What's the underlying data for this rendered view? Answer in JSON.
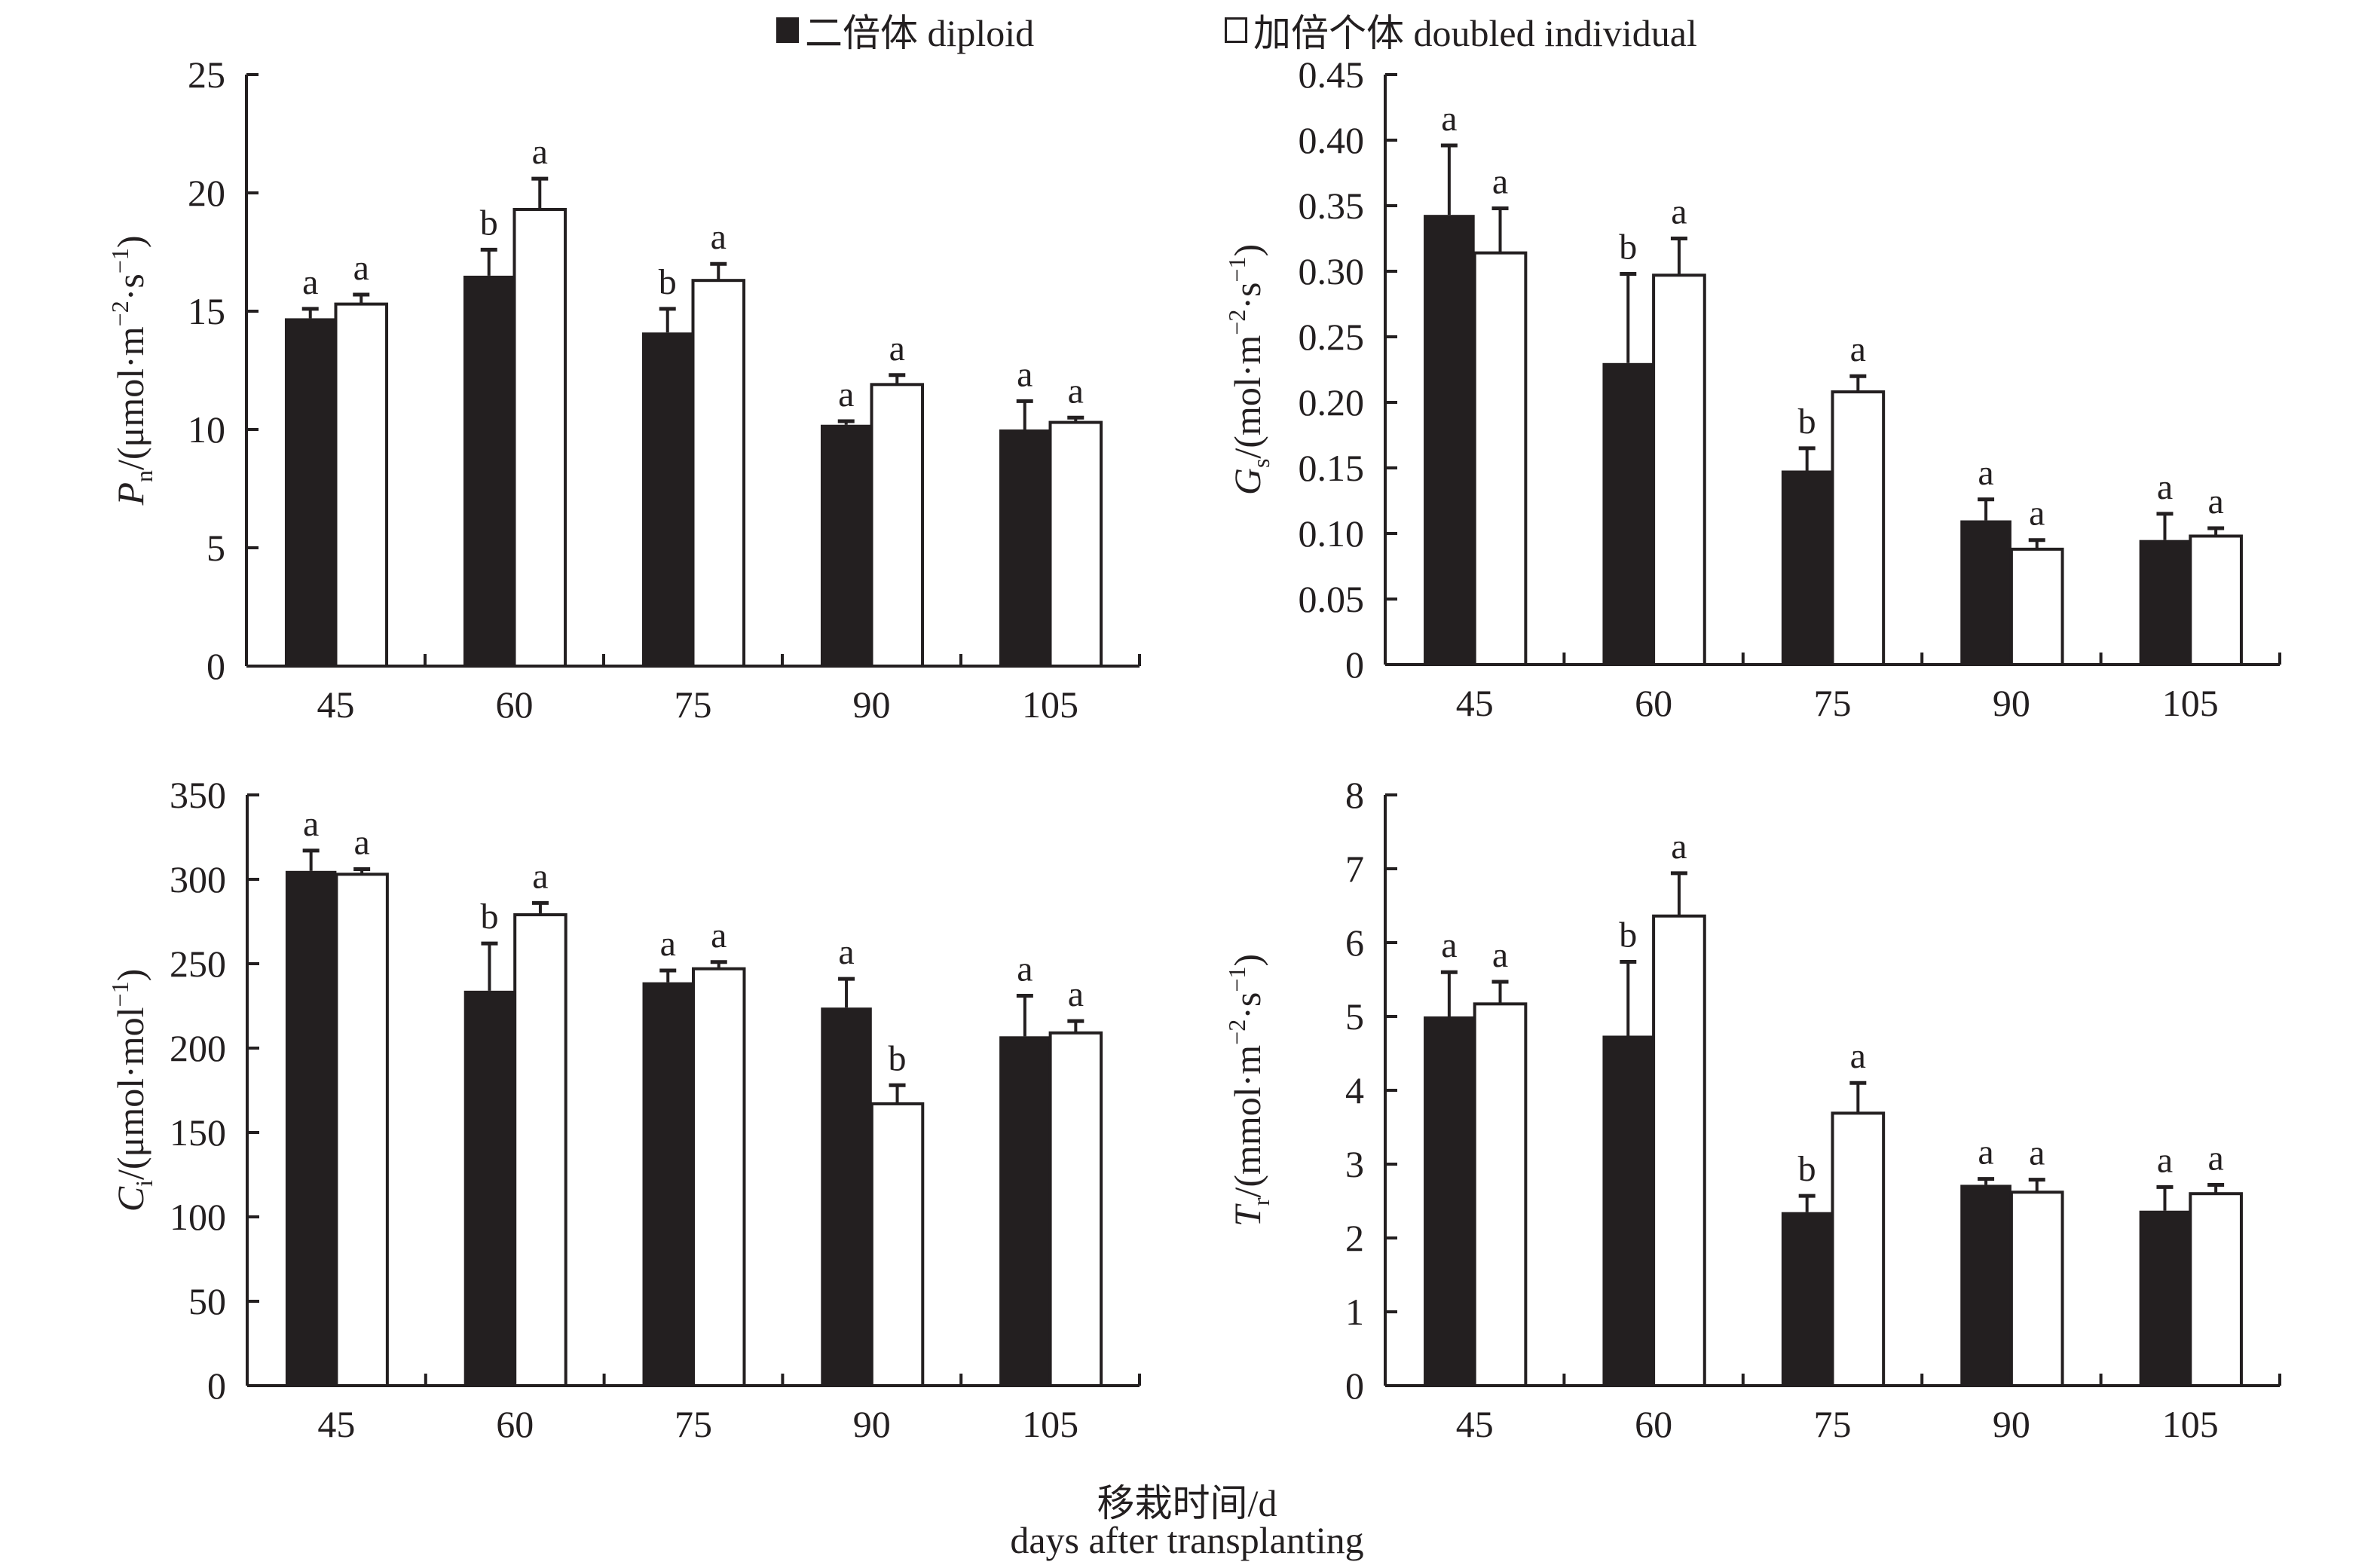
{
  "legend": {
    "diploid": "二倍体 diploid",
    "doubled": "加倍个体 doubled individual"
  },
  "colors": {
    "diploid": "#231f20",
    "doubled": "#ffffff",
    "axis": "#231f20"
  },
  "xlabel": {
    "zh": "移栽时间/d",
    "en": "days after transplanting"
  },
  "chart_data": [
    {
      "type": "bar",
      "id": "pn",
      "ylabel": {
        "sym": "P",
        "sub": "n",
        "unit": "/(μmol·m",
        "exp1": "−2",
        "mid": "·s",
        "exp2": "−1",
        "end": ")"
      },
      "categories": [
        "45",
        "60",
        "75",
        "90",
        "105"
      ],
      "ylim": [
        0,
        25
      ],
      "yticks": [
        0,
        5,
        10,
        15,
        20,
        25
      ],
      "ytick_labels": [
        "0",
        "5",
        "10",
        "15",
        "20",
        "25"
      ],
      "series": [
        {
          "name": "diploid",
          "values": [
            14.7,
            16.5,
            14.1,
            10.2,
            10.0
          ],
          "errors": [
            0.4,
            1.1,
            1.0,
            0.15,
            1.2
          ],
          "letters": [
            "a",
            "b",
            "b",
            "a",
            "a"
          ]
        },
        {
          "name": "doubled individual",
          "values": [
            15.3,
            19.3,
            16.3,
            11.9,
            10.3
          ],
          "errors": [
            0.4,
            1.3,
            0.7,
            0.4,
            0.2
          ],
          "letters": [
            "a",
            "a",
            "a",
            "a",
            "a"
          ]
        }
      ]
    },
    {
      "type": "bar",
      "id": "gs",
      "ylabel": {
        "sym": "G",
        "sub": "s",
        "unit": "/(mol·m",
        "exp1": "−2",
        "mid": "·s",
        "exp2": "−1",
        "end": ")"
      },
      "categories": [
        "45",
        "60",
        "75",
        "90",
        "105"
      ],
      "ylim": [
        0,
        0.45
      ],
      "yticks": [
        0,
        0.05,
        0.1,
        0.15,
        0.2,
        0.25,
        0.3,
        0.35,
        0.4,
        0.45
      ],
      "ytick_labels": [
        "0",
        "0.05",
        "0.10",
        "0.15",
        "0.20",
        "0.25",
        "0.30",
        "0.35",
        "0.40",
        "0.45"
      ],
      "series": [
        {
          "name": "diploid",
          "values": [
            0.343,
            0.23,
            0.148,
            0.11,
            0.095
          ],
          "errors": [
            0.053,
            0.068,
            0.017,
            0.016,
            0.02
          ],
          "letters": [
            "a",
            "b",
            "b",
            "a",
            "a"
          ]
        },
        {
          "name": "doubled individual",
          "values": [
            0.314,
            0.297,
            0.208,
            0.088,
            0.098
          ],
          "errors": [
            0.034,
            0.028,
            0.012,
            0.007,
            0.006
          ],
          "letters": [
            "a",
            "a",
            "a",
            "a",
            "a"
          ]
        }
      ]
    },
    {
      "type": "bar",
      "id": "ci",
      "ylabel": {
        "sym": "C",
        "sub": "i",
        "unit": "/(μmol·mol",
        "exp1": "−1",
        "mid": "",
        "exp2": "",
        "end": ")"
      },
      "categories": [
        "45",
        "60",
        "75",
        "90",
        "105"
      ],
      "ylim": [
        0,
        350
      ],
      "yticks": [
        0,
        50,
        100,
        150,
        200,
        250,
        300,
        350
      ],
      "ytick_labels": [
        "0",
        "50",
        "100",
        "150",
        "200",
        "250",
        "300",
        "350"
      ],
      "series": [
        {
          "name": "diploid",
          "values": [
            305,
            234,
            239,
            224,
            207
          ],
          "errors": [
            12,
            28,
            7,
            17,
            24
          ],
          "letters": [
            "a",
            "b",
            "a",
            "a",
            "a"
          ]
        },
        {
          "name": "doubled individual",
          "values": [
            303,
            279,
            247,
            167,
            209
          ],
          "errors": [
            3,
            7,
            4,
            11,
            7
          ],
          "letters": [
            "a",
            "a",
            "a",
            "b",
            "a"
          ]
        }
      ]
    },
    {
      "type": "bar",
      "id": "tr",
      "ylabel": {
        "sym": "T",
        "sub": "r",
        "unit": "/(mmol·m",
        "exp1": "−2",
        "mid": "·s",
        "exp2": "−1",
        "end": ")"
      },
      "categories": [
        "45",
        "60",
        "75",
        "90",
        "105"
      ],
      "ylim": [
        0,
        8
      ],
      "yticks": [
        0,
        1,
        2,
        3,
        4,
        5,
        6,
        7,
        8
      ],
      "ytick_labels": [
        "0",
        "1",
        "2",
        "3",
        "4",
        "5",
        "6",
        "7",
        "8"
      ],
      "series": [
        {
          "name": "diploid",
          "values": [
            5.0,
            4.74,
            2.35,
            2.72,
            2.37
          ],
          "errors": [
            0.6,
            1.0,
            0.22,
            0.08,
            0.32
          ],
          "letters": [
            "a",
            "b",
            "b",
            "a",
            "a"
          ]
        },
        {
          "name": "doubled individual",
          "values": [
            5.17,
            6.36,
            3.69,
            2.62,
            2.6
          ],
          "errors": [
            0.3,
            0.58,
            0.41,
            0.17,
            0.12
          ],
          "letters": [
            "a",
            "a",
            "a",
            "a",
            "a"
          ]
        }
      ]
    }
  ]
}
